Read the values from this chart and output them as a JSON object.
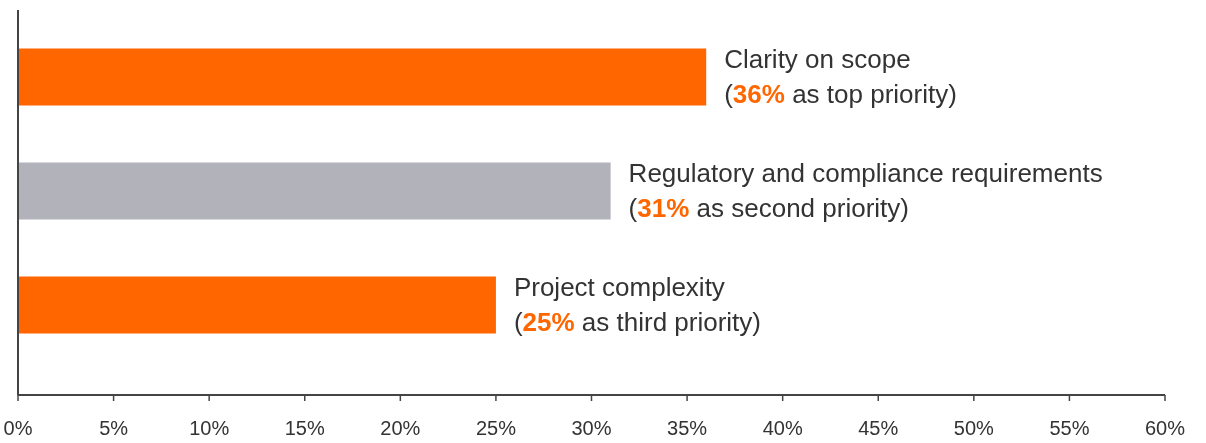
{
  "chart_data": {
    "type": "bar",
    "orientation": "horizontal",
    "categories": [
      "Clarity on scope",
      "Regulatory and compliance requirements",
      "Project complexity"
    ],
    "values": [
      36,
      31,
      25
    ],
    "colors": [
      "#ff6600",
      "#b2b2bb",
      "#ff6600"
    ],
    "value_labels": [
      "(36% as top priority)",
      "(31% as second priority)",
      "(25% as third priority)"
    ],
    "xlim": [
      0,
      60
    ],
    "xticks": [
      {
        "value": 0,
        "label": "0%"
      },
      {
        "value": 5,
        "label": "5%"
      },
      {
        "value": 10,
        "label": "10%"
      },
      {
        "value": 15,
        "label": "15%"
      },
      {
        "value": 20,
        "label": "20%"
      },
      {
        "value": 25,
        "label": "25%"
      },
      {
        "value": 30,
        "label": "30%"
      },
      {
        "value": 35,
        "label": "35%"
      },
      {
        "value": 40,
        "label": "40%"
      },
      {
        "value": 45,
        "label": "45%"
      },
      {
        "value": 50,
        "label": "50%"
      },
      {
        "value": 55,
        "label": "55%"
      },
      {
        "value": 60,
        "label": "60%"
      }
    ],
    "grid": false
  }
}
